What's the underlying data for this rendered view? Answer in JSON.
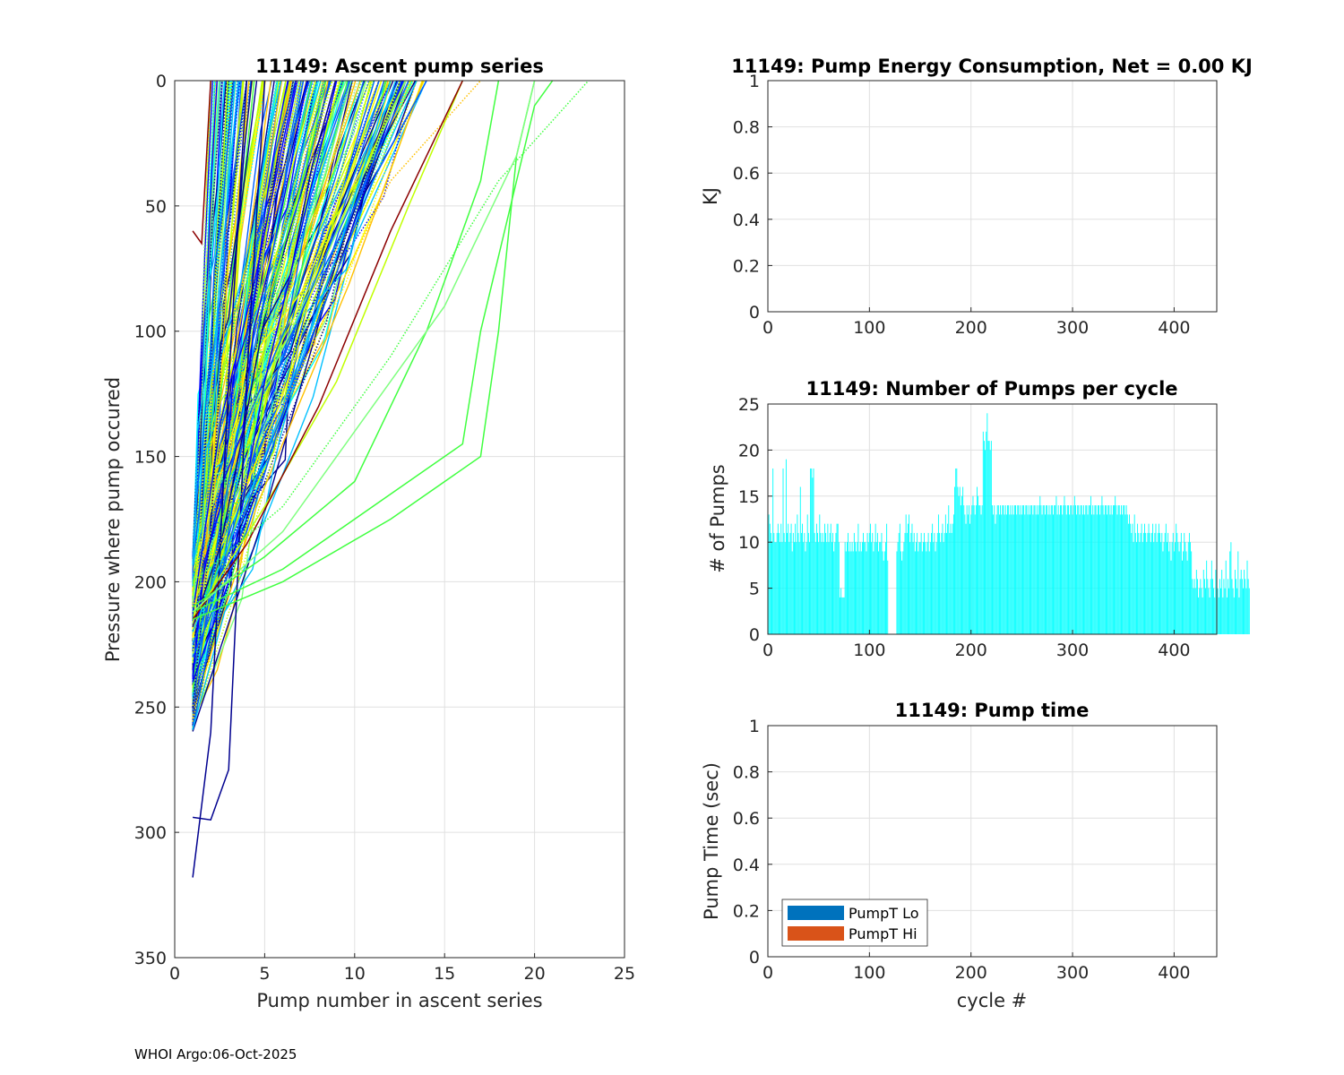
{
  "footer": "WHOI Argo:06-Oct-2025",
  "colors": {
    "grid": "#e0e0e0",
    "axis": "#262626",
    "bar_fill": "#00ffff",
    "legend_lo": "#0072bd",
    "legend_hi": "#d95319",
    "series_palette": [
      "#00008f",
      "#0000ff",
      "#0060ff",
      "#00c0ff",
      "#00ffff",
      "#7fff7f",
      "#40ff40",
      "#c0ff00",
      "#ffff00",
      "#ffc000",
      "#ff6000",
      "#ff0000",
      "#8b0000"
    ]
  },
  "chart_data": [
    {
      "id": "ascent",
      "type": "line",
      "title": "11149: Ascent pump series",
      "xlabel": "Pump number in ascent series",
      "ylabel": "Pressure where pump occured",
      "xlim": [
        0,
        25
      ],
      "ylim": [
        0,
        350
      ],
      "y_reversed": true,
      "xticks": [
        0,
        5,
        10,
        15,
        20,
        25
      ],
      "yticks": [
        0,
        50,
        100,
        150,
        200,
        250,
        300,
        350
      ],
      "grid": true,
      "series_count_note": "many overlapping profiles colored by cycle",
      "representative_series": [
        {
          "color": "#00008f",
          "style": "solid",
          "x": [
            1,
            2,
            3,
            4
          ],
          "y": [
            318,
            260,
            120,
            0
          ]
        },
        {
          "color": "#00008f",
          "style": "solid",
          "x": [
            1,
            2,
            3,
            4,
            5
          ],
          "y": [
            294,
            295,
            275,
            120,
            0
          ]
        },
        {
          "color": "#00008f",
          "style": "dotted",
          "x": [
            1,
            2,
            3,
            4
          ],
          "y": [
            250,
            180,
            60,
            0
          ]
        },
        {
          "color": "#0000ff",
          "style": "solid",
          "x": [
            1,
            3,
            5,
            7,
            9
          ],
          "y": [
            240,
            200,
            120,
            60,
            0
          ]
        },
        {
          "color": "#0060ff",
          "style": "solid",
          "x": [
            1,
            4,
            7,
            10,
            13
          ],
          "y": [
            230,
            180,
            110,
            50,
            0
          ]
        },
        {
          "color": "#0060ff",
          "style": "solid",
          "x": [
            1,
            4,
            8,
            11,
            14
          ],
          "y": [
            225,
            170,
            95,
            40,
            0
          ]
        },
        {
          "color": "#00c0ff",
          "style": "solid",
          "x": [
            1,
            5,
            9,
            12
          ],
          "y": [
            220,
            150,
            70,
            0
          ]
        },
        {
          "color": "#c0ff00",
          "style": "solid",
          "x": [
            1,
            5,
            9,
            13,
            16
          ],
          "y": [
            215,
            170,
            120,
            50,
            0
          ]
        },
        {
          "color": "#ffc000",
          "style": "dotted",
          "x": [
            1,
            4,
            8,
            12,
            17
          ],
          "y": [
            210,
            160,
            100,
            40,
            0
          ]
        },
        {
          "color": "#8b0000",
          "style": "solid",
          "x": [
            1,
            4,
            8,
            12,
            16
          ],
          "y": [
            215,
            185,
            130,
            60,
            0
          ]
        },
        {
          "color": "#8b0000",
          "style": "solid",
          "x": [
            1,
            1.5,
            2
          ],
          "y": [
            60,
            65,
            0
          ]
        },
        {
          "color": "#40ff40",
          "style": "solid",
          "x": [
            1,
            6,
            12,
            17,
            18,
            19,
            20
          ],
          "y": [
            215,
            200,
            175,
            150,
            100,
            30,
            0
          ]
        },
        {
          "color": "#40ff40",
          "style": "solid",
          "x": [
            1,
            6,
            12,
            16,
            17,
            20,
            21
          ],
          "y": [
            212,
            195,
            165,
            145,
            100,
            10,
            0
          ]
        },
        {
          "color": "#40ff40",
          "style": "solid",
          "x": [
            1,
            5,
            10,
            14,
            17,
            18
          ],
          "y": [
            210,
            190,
            160,
            100,
            40,
            0
          ]
        },
        {
          "color": "#40ff40",
          "style": "dotted",
          "x": [
            1,
            6,
            12,
            18,
            23
          ],
          "y": [
            200,
            170,
            110,
            40,
            0
          ]
        },
        {
          "color": "#7fff7f",
          "style": "solid",
          "x": [
            1,
            6,
            11,
            15,
            19,
            20
          ],
          "y": [
            212,
            180,
            130,
            90,
            30,
            0
          ]
        }
      ]
    },
    {
      "id": "energy",
      "type": "bar",
      "title": "11149: Pump Energy Consumption,  Net =   0.00 KJ",
      "xlabel": "",
      "ylabel": "KJ",
      "xlim": [
        0,
        442
      ],
      "ylim": [
        0,
        1
      ],
      "xticks": [
        0,
        100,
        200,
        300,
        400
      ],
      "ytick_labels": [
        "0",
        "0.2",
        "0.4",
        "0.6",
        "0.8",
        "1"
      ],
      "grid": true,
      "values": []
    },
    {
      "id": "npumps",
      "type": "bar",
      "title": "11149: Number of Pumps per cycle",
      "xlabel": "",
      "ylabel": "# of Pumps",
      "xlim": [
        0,
        442
      ],
      "ylim": [
        0,
        25
      ],
      "xticks": [
        0,
        100,
        200,
        300,
        400
      ],
      "yticks": [
        0,
        5,
        10,
        15,
        20,
        25
      ],
      "grid": true,
      "x_start": 1,
      "values": [
        13,
        12,
        11,
        10,
        18,
        11,
        10,
        10,
        11,
        12,
        11,
        10,
        12,
        10,
        18,
        11,
        10,
        19,
        11,
        12,
        10,
        11,
        12,
        9,
        11,
        10,
        12,
        10,
        13,
        11,
        10,
        16,
        11,
        12,
        10,
        11,
        9,
        10,
        13,
        11,
        10,
        18,
        18,
        17,
        18,
        11,
        10,
        12,
        11,
        10,
        13,
        11,
        10,
        11,
        10,
        12,
        11,
        10,
        12,
        10,
        11,
        12,
        10,
        11,
        9,
        10,
        11,
        12,
        12,
        10,
        4,
        5,
        4,
        4,
        4,
        10,
        9,
        10,
        11,
        9,
        10,
        9,
        10,
        9,
        11,
        10,
        9,
        10,
        12,
        9,
        10,
        9,
        10,
        11,
        10,
        10,
        9,
        11,
        10,
        11,
        12,
        10,
        11,
        9,
        10,
        12,
        10,
        11,
        9,
        10,
        10,
        11,
        9,
        8,
        9,
        10,
        12,
        8,
        0,
        0,
        0,
        0,
        0,
        0,
        0,
        0,
        9,
        10,
        11,
        12,
        9,
        8,
        9,
        10,
        11,
        13,
        11,
        12,
        13,
        10,
        11,
        12,
        10,
        11,
        9,
        10,
        11,
        9,
        10,
        10,
        11,
        9,
        10,
        11,
        10,
        9,
        10,
        11,
        9,
        10,
        11,
        12,
        10,
        11,
        9,
        10,
        11,
        13,
        11,
        10,
        11,
        12,
        10,
        11,
        13,
        11,
        12,
        14,
        11,
        12,
        11,
        12,
        13,
        16,
        18,
        18,
        16,
        15,
        16,
        14,
        15,
        16,
        14,
        13,
        12,
        14,
        13,
        14,
        12,
        13,
        14,
        15,
        14,
        13,
        14,
        16,
        15,
        14,
        14,
        13,
        14,
        22,
        21,
        20,
        22,
        24,
        21,
        21,
        20,
        21,
        14,
        13,
        14,
        12,
        13,
        14,
        14,
        13,
        14,
        13,
        14,
        14,
        13,
        14,
        13,
        14,
        14,
        13,
        14,
        13,
        14,
        13,
        14,
        14,
        13,
        14,
        14,
        13,
        14,
        13,
        14,
        14,
        13,
        14,
        14,
        13,
        14,
        13,
        14,
        14,
        13,
        14,
        14,
        13,
        14,
        13,
        14,
        15,
        14,
        13,
        14,
        14,
        13,
        14,
        14,
        13,
        14,
        13,
        14,
        14,
        13,
        14,
        14,
        15,
        13,
        14,
        13,
        14,
        14,
        13,
        14,
        15,
        14,
        13,
        14,
        14,
        13,
        14,
        14,
        13,
        14,
        15,
        14,
        13,
        14,
        14,
        13,
        14,
        14,
        13,
        14,
        13,
        14,
        14,
        13,
        14,
        14,
        15,
        13,
        14,
        13,
        14,
        14,
        13,
        14,
        14,
        13,
        14,
        15,
        14,
        13,
        14,
        14,
        13,
        14,
        14,
        13,
        14,
        13,
        14,
        14,
        15,
        14,
        13,
        14,
        14,
        13,
        14,
        13,
        14,
        14,
        13,
        14,
        13,
        12,
        13,
        12,
        11,
        12,
        10,
        13,
        11,
        10,
        12,
        11,
        10,
        11,
        12,
        10,
        11,
        12,
        11,
        10,
        11,
        12,
        11,
        10,
        11,
        12,
        10,
        11,
        12,
        10,
        11,
        12,
        11,
        10,
        11,
        9,
        10,
        11,
        12,
        10,
        11,
        9,
        10,
        8,
        10,
        11,
        9,
        10,
        12,
        11,
        10,
        9,
        10,
        11,
        8,
        9,
        11,
        10,
        9,
        8,
        10,
        11,
        10,
        9,
        6,
        5,
        6,
        5,
        7,
        6,
        4,
        5,
        6,
        5,
        4,
        7,
        6,
        5,
        8,
        6,
        5,
        4,
        6,
        8,
        6,
        5,
        4,
        7,
        6,
        5,
        4,
        6,
        5,
        7,
        4,
        6,
        5,
        8,
        4,
        6,
        5,
        9,
        10,
        6,
        5,
        4,
        7,
        6,
        5,
        9,
        4,
        6,
        7,
        6,
        5,
        7,
        6,
        5,
        8,
        6,
        5
      ]
    },
    {
      "id": "pumptime",
      "type": "bar",
      "title": "11149: Pump time",
      "xlabel": "cycle #",
      "ylabel": "Pump Time (sec)",
      "xlim": [
        0,
        442
      ],
      "ylim": [
        0,
        1
      ],
      "xticks": [
        0,
        100,
        200,
        300,
        400
      ],
      "ytick_labels": [
        "0",
        "0.2",
        "0.4",
        "0.6",
        "0.8",
        "1"
      ],
      "grid": true,
      "legend": {
        "position": "bottom-left",
        "entries": [
          "PumpT Lo",
          "PumpT Hi"
        ]
      },
      "series": [
        {
          "name": "PumpT Lo",
          "values": []
        },
        {
          "name": "PumpT Hi",
          "values": []
        }
      ]
    }
  ]
}
